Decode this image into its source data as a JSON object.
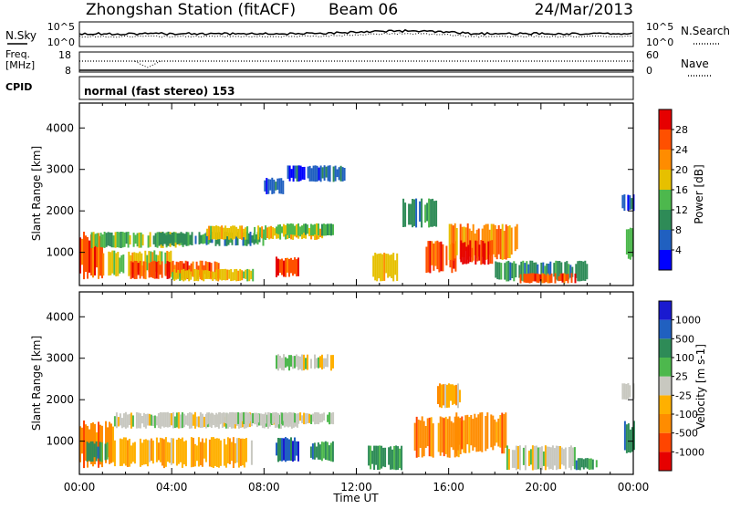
{
  "header": {
    "title": "Zhongshan Station (fitACF)",
    "beam": "Beam 06",
    "date": "24/Mar/2013"
  },
  "noise_panel": {
    "left_label": "N.Sky",
    "right_label": "N.Search",
    "tick_top_left": "10^5",
    "tick_bottom_left": "10^0",
    "tick_top_right": "10^5",
    "tick_bottom_right": "10^0"
  },
  "freq_panel": {
    "left_label_1": "Freq.",
    "left_label_2": "[MHz]",
    "tick_top_left": "18",
    "tick_bottom_left": "8",
    "right_label": "Nave",
    "tick_top_right": "60",
    "tick_bottom_right": "0"
  },
  "cpid_panel": {
    "label": "CPID",
    "text": "normal (fast stereo) 153"
  },
  "colors": {
    "power_bar": [
      "#0000ff",
      "#2060c0",
      "#2e8b57",
      "#4db84d",
      "#e6c000",
      "#ff8c00",
      "#ff5000",
      "#e60000"
    ],
    "velocity_bar": [
      "#e60000",
      "#ff4500",
      "#ff8c00",
      "#ffb000",
      "#c8c8c0",
      "#4db84d",
      "#2e8b57",
      "#2060c0",
      "#1a1ad0"
    ]
  },
  "chart_data": [
    {
      "type": "heatmap",
      "name": "power",
      "ylabel": "Slant Range [km]",
      "yticks": [
        "1000",
        "2000",
        "3000",
        "4000"
      ],
      "ylim": [
        200,
        4600
      ],
      "xlim": [
        "00:00",
        "24:00"
      ],
      "colorbar_label": "Power [dB]",
      "colorbar_ticks": [
        "4",
        "8",
        "12",
        "16",
        "20",
        "24",
        "28"
      ],
      "colorbar_range": [
        0,
        32
      ],
      "patches": [
        {
          "t0": 0.0,
          "t1": 1.0,
          "r0": 350,
          "r1": 1500,
          "v": 24
        },
        {
          "t0": 1.0,
          "t1": 4.0,
          "r0": 400,
          "r1": 1050,
          "v": 18
        },
        {
          "t0": 2.2,
          "t1": 6.0,
          "r0": 350,
          "r1": 800,
          "v": 27
        },
        {
          "t0": 4.0,
          "t1": 7.5,
          "r0": 300,
          "r1": 600,
          "v": 16
        },
        {
          "t0": 0.5,
          "t1": 4.5,
          "r0": 1100,
          "r1": 1500,
          "v": 14
        },
        {
          "t0": 3.5,
          "t1": 8.0,
          "r0": 1150,
          "r1": 1500,
          "v": 10
        },
        {
          "t0": 5.5,
          "t1": 10.5,
          "r0": 1300,
          "r1": 1650,
          "v": 18
        },
        {
          "t0": 8.5,
          "t1": 11.0,
          "r0": 1400,
          "r1": 1700,
          "v": 12
        },
        {
          "t0": 9.0,
          "t1": 11.5,
          "r0": 2700,
          "r1": 3100,
          "v": 6
        },
        {
          "t0": 8.0,
          "t1": 9.0,
          "r0": 2400,
          "r1": 2800,
          "v": 6
        },
        {
          "t0": 8.5,
          "t1": 9.5,
          "r0": 400,
          "r1": 900,
          "v": 26
        },
        {
          "t0": 12.7,
          "t1": 13.8,
          "r0": 300,
          "r1": 1000,
          "v": 16
        },
        {
          "t0": 14.0,
          "t1": 15.5,
          "r0": 1600,
          "r1": 2300,
          "v": 8
        },
        {
          "t0": 15.0,
          "t1": 16.3,
          "r0": 500,
          "r1": 1300,
          "v": 26
        },
        {
          "t0": 16.0,
          "t1": 19.0,
          "r0": 800,
          "r1": 1700,
          "v": 20
        },
        {
          "t0": 16.5,
          "t1": 18.0,
          "r0": 700,
          "r1": 1300,
          "v": 28
        },
        {
          "t0": 18.0,
          "t1": 22.0,
          "r0": 300,
          "r1": 800,
          "v": 10
        },
        {
          "t0": 19.0,
          "t1": 21.5,
          "r0": 250,
          "r1": 500,
          "v": 24
        },
        {
          "t0": 23.5,
          "t1": 24.0,
          "r0": 2000,
          "r1": 2400,
          "v": 6
        },
        {
          "t0": 23.6,
          "t1": 24.0,
          "r0": 800,
          "r1": 1600,
          "v": 12
        }
      ]
    },
    {
      "type": "heatmap",
      "name": "velocity",
      "ylabel": "Slant Range [km]",
      "yticks": [
        "1000",
        "2000",
        "3000",
        "4000"
      ],
      "ylim": [
        200,
        4600
      ],
      "xlim": [
        "00:00",
        "24:00"
      ],
      "xlabel": "Time UT",
      "xticks": [
        "00:00",
        "04:00",
        "08:00",
        "12:00",
        "16:00",
        "20:00",
        "00:00"
      ],
      "colorbar_label": "Velocity [m s-1]",
      "colorbar_ticks": [
        "-1000",
        "-500",
        "-100",
        "-25",
        "25",
        "100",
        "500",
        "1000"
      ],
      "patches": [
        {
          "t0": 0.0,
          "t1": 1.5,
          "r0": 350,
          "r1": 1500,
          "v": 2
        },
        {
          "t0": 1.5,
          "t1": 7.5,
          "r0": 350,
          "r1": 1100,
          "v": 3
        },
        {
          "t0": 0.3,
          "t1": 1.2,
          "r0": 500,
          "r1": 1000,
          "v": 6
        },
        {
          "t0": 1.5,
          "t1": 9.5,
          "r0": 1300,
          "r1": 1700,
          "v": 4
        },
        {
          "t0": 5.5,
          "t1": 11.0,
          "r0": 1400,
          "r1": 1700,
          "v": 4
        },
        {
          "t0": 8.5,
          "t1": 11.0,
          "r0": 2700,
          "r1": 3100,
          "v": 4
        },
        {
          "t0": 8.5,
          "t1": 9.5,
          "r0": 500,
          "r1": 1100,
          "v": 7
        },
        {
          "t0": 10.0,
          "t1": 11.0,
          "r0": 500,
          "r1": 1000,
          "v": 6
        },
        {
          "t0": 12.5,
          "t1": 14.0,
          "r0": 300,
          "r1": 900,
          "v": 6
        },
        {
          "t0": 14.5,
          "t1": 16.5,
          "r0": 600,
          "r1": 1600,
          "v": 2
        },
        {
          "t0": 16.3,
          "t1": 18.5,
          "r0": 700,
          "r1": 1700,
          "v": 2
        },
        {
          "t0": 15.5,
          "t1": 16.5,
          "r0": 1800,
          "r1": 2400,
          "v": 3
        },
        {
          "t0": 18.5,
          "t1": 21.5,
          "r0": 300,
          "r1": 900,
          "v": 4
        },
        {
          "t0": 21.5,
          "t1": 22.5,
          "r0": 300,
          "r1": 600,
          "v": 6
        },
        {
          "t0": 23.5,
          "t1": 24.0,
          "r0": 2000,
          "r1": 2400,
          "v": 4
        },
        {
          "t0": 23.6,
          "t1": 24.0,
          "r0": 700,
          "r1": 1500,
          "v": 6
        }
      ]
    }
  ]
}
